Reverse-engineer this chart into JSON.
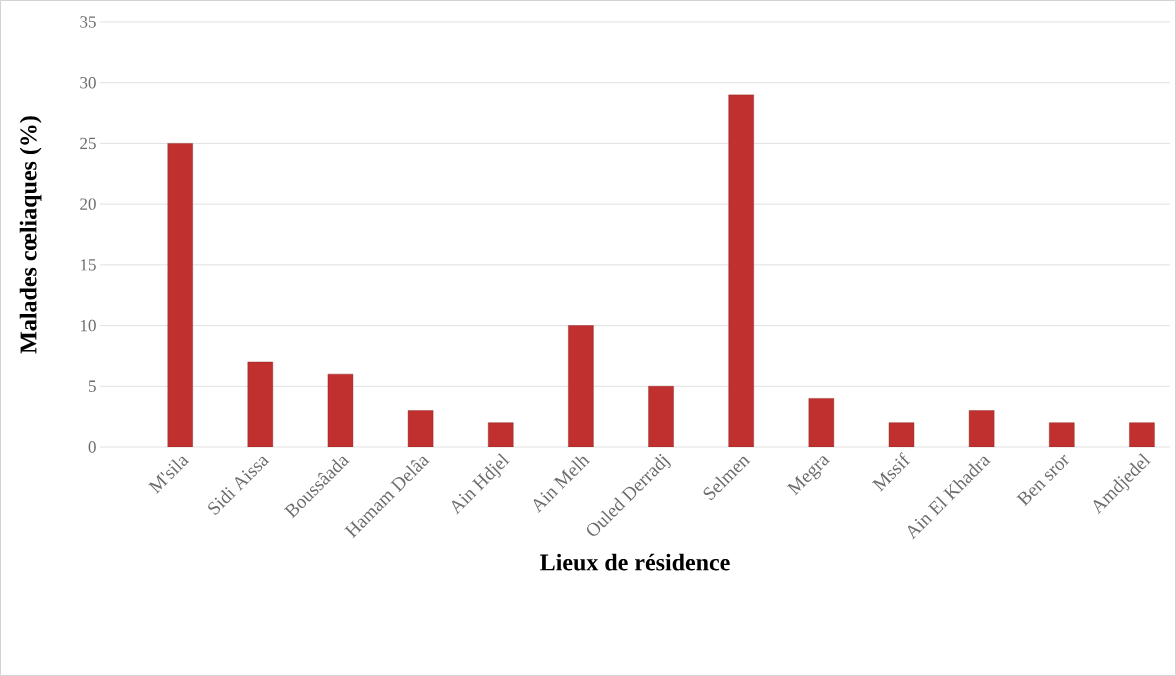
{
  "chart_data": {
    "type": "bar",
    "xlabel": "Lieux de résidence",
    "ylabel": "Malades cœliaques (%)",
    "categories": [
      "M'sila",
      "Sidi Aissa",
      "Boussâada",
      "Hamam Delâa",
      "Ain Hdjel",
      "Ain Melh",
      "Ouled Derradj",
      "Selmen",
      "Megra",
      "Mssif",
      "Ain El Khadra",
      "Ben sror",
      "Amdjedel"
    ],
    "values": [
      25,
      7,
      6,
      3,
      2,
      10,
      5,
      29,
      4,
      2,
      3,
      2,
      2
    ],
    "color": "#c0302e",
    "ylim": [
      0,
      35
    ],
    "yticks": [
      0,
      5,
      10,
      15,
      20,
      25,
      30,
      35
    ],
    "grid": "y"
  }
}
